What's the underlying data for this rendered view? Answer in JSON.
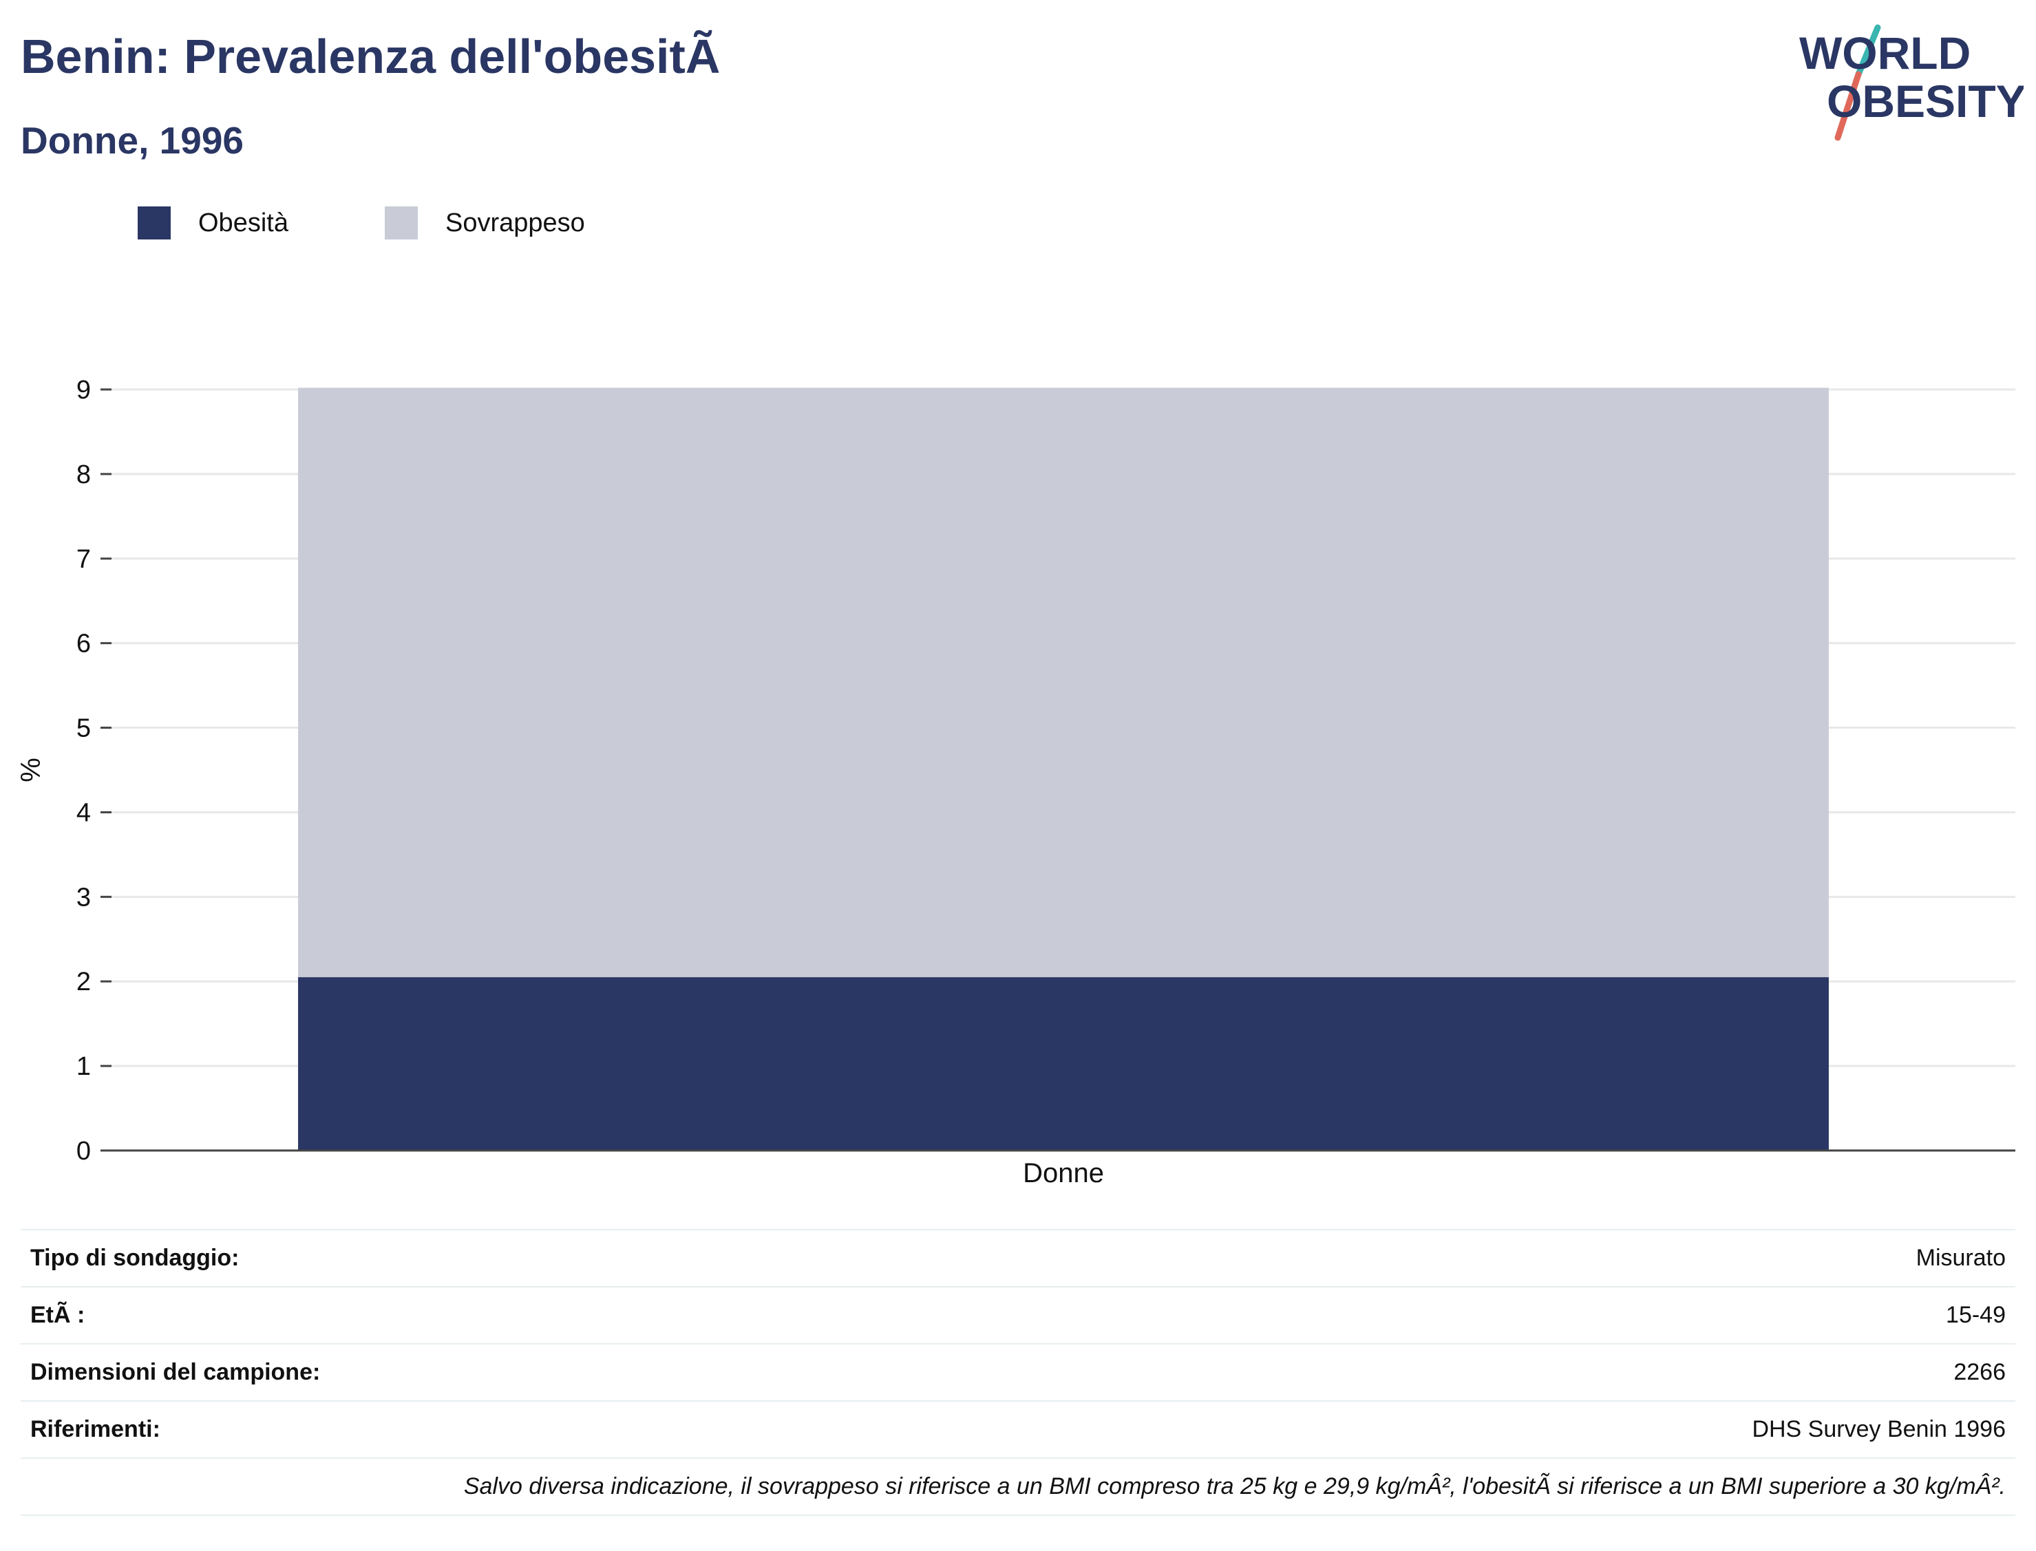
{
  "header": {
    "title": "Benin: Prevalenza dell'obesitÃ",
    "subtitle": "Donne, 1996"
  },
  "logo": {
    "line1": "WORLD",
    "line2": "OBESITY",
    "text_color": "#2a3663",
    "slash_colors": [
      "#3ab5b0",
      "#e0685a"
    ]
  },
  "legend": {
    "items": [
      {
        "label": "Obesità",
        "color": "#2a3663"
      },
      {
        "label": "Sovrappeso",
        "color": "#c9ccd7"
      }
    ]
  },
  "chart_data": {
    "type": "bar",
    "stacked": true,
    "categories": [
      "Donne"
    ],
    "series": [
      {
        "name": "Obesità",
        "values": [
          2.05
        ],
        "color": "#2a3663"
      },
      {
        "name": "Sovrappeso",
        "values": [
          6.97
        ],
        "color": "#c9ccd7"
      }
    ],
    "ylabel": "%",
    "xlabel": "",
    "ylim": [
      0,
      9
    ],
    "yticks": [
      0,
      1,
      2,
      3,
      4,
      5,
      6,
      7,
      8,
      9
    ],
    "grid": true,
    "legend_position": "top-left"
  },
  "info_table": {
    "rows": [
      {
        "key": "Tipo di sondaggio:",
        "value": "Misurato"
      },
      {
        "key": "EtÃ :",
        "value": "15-49"
      },
      {
        "key": "Dimensioni del campione:",
        "value": "2266"
      },
      {
        "key": "Riferimenti:",
        "value": "DHS Survey Benin 1996"
      }
    ],
    "note": "Salvo diversa indicazione, il sovrappeso si riferisce a un BMI compreso tra 25 kg e 29,9 kg/mÂ², l'obesitÃ si riferisce a un BMI superiore a 30 kg/mÂ²."
  }
}
